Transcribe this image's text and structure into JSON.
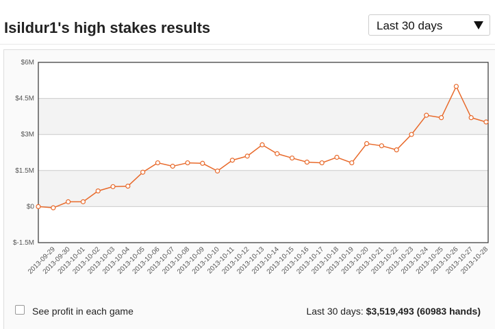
{
  "header": {
    "title": "Isildur1's high stakes results",
    "dropdown": "Last 30 days"
  },
  "chart_data": {
    "type": "line",
    "categories": [
      null,
      "2013-09-29",
      "2013-09-30",
      "2013-10-01",
      "2013-10-02",
      "2013-10-03",
      "2013-10-04",
      "2013-10-05",
      "2013-10-06",
      "2013-10-07",
      "2013-10-08",
      "2013-10-09",
      "2013-10-10",
      "2013-10-11",
      "2013-10-12",
      "2013-10-13",
      "2013-10-14",
      "2013-10-15",
      "2013-10-16",
      "2013-10-17",
      "2013-10-18",
      "2013-10-19",
      "2013-10-20",
      "2013-10-21",
      "2013-10-22",
      "2013-10-23",
      "2013-10-24",
      "2013-10-25",
      "2013-10-26",
      "2013-10-27",
      "2013-10-28"
    ],
    "series": [
      {
        "name": "Isildur1",
        "color": "#e8692a",
        "values": [
          0,
          -50000,
          200000,
          200000,
          650000,
          830000,
          850000,
          1430000,
          1820000,
          1680000,
          1820000,
          1800000,
          1480000,
          1930000,
          2100000,
          2570000,
          2200000,
          2020000,
          1850000,
          1820000,
          2050000,
          1820000,
          2620000,
          2530000,
          2360000,
          3000000,
          3800000,
          3700000,
          5000000,
          3700000,
          3519493
        ]
      }
    ],
    "ylim": [
      -1500000,
      6000000
    ],
    "yticks": [
      {
        "value": -1500000,
        "label": "$-1.5M"
      },
      {
        "value": 0,
        "label": "$0"
      },
      {
        "value": 1500000,
        "label": "$1.5M"
      },
      {
        "value": 3000000,
        "label": "$3M"
      },
      {
        "value": 4500000,
        "label": "$4.5M"
      },
      {
        "value": 6000000,
        "label": "$6M"
      }
    ],
    "grid": true
  },
  "footer": {
    "checkbox_label": "See profit in each game",
    "summary_label": "Last 30 days:",
    "summary_value": "$3,519,493 (60983 hands)"
  }
}
